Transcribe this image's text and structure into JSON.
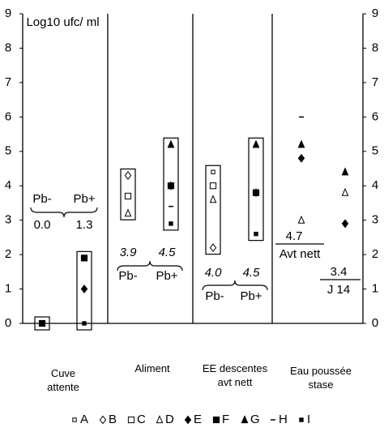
{
  "chart_data": {
    "type": "scatter",
    "y_label": "Log10 ufc/ ml",
    "categories": [
      "Cuve attente",
      "Aliment",
      "EE descentes avt nett",
      "Eau poussée stase"
    ],
    "ylim": [
      0,
      9
    ],
    "yticks": [
      0,
      1,
      2,
      3,
      4,
      5,
      6,
      7,
      8,
      9
    ],
    "series": [
      {
        "name": "A",
        "marker": "small-square-open",
        "color": "#000",
        "values": [
          null,
          null,
          null,
          null,
          4.4,
          null,
          null,
          null
        ]
      },
      {
        "name": "B",
        "marker": "diamond-open",
        "color": "#000",
        "values": [
          null,
          null,
          4.3,
          null,
          2.2,
          null,
          null,
          null
        ]
      },
      {
        "name": "C",
        "marker": "square-open",
        "color": "#000",
        "values": [
          null,
          null,
          3.7,
          null,
          4.0,
          null,
          null,
          null
        ]
      },
      {
        "name": "D",
        "marker": "triangle-open",
        "color": "#000",
        "values": [
          null,
          null,
          3.2,
          null,
          3.6,
          null,
          3.0,
          3.8
        ]
      },
      {
        "name": "E",
        "marker": "diamond",
        "color": "#000",
        "values": [
          null,
          1.0,
          null,
          4.0,
          null,
          3.8,
          4.8,
          2.9
        ]
      },
      {
        "name": "F",
        "marker": "square",
        "color": "#000",
        "values": [
          0,
          1.9,
          null,
          4.0,
          null,
          3.8,
          null,
          null
        ]
      },
      {
        "name": "G",
        "marker": "triangle",
        "color": "#000",
        "values": [
          null,
          null,
          null,
          5.2,
          null,
          5.2,
          5.2,
          4.4
        ]
      },
      {
        "name": "H",
        "marker": "dash",
        "color": "#000",
        "values": [
          null,
          null,
          null,
          3.4,
          null,
          null,
          6.0,
          null
        ]
      },
      {
        "name": "I",
        "marker": "small-square",
        "color": "#000",
        "values": [
          null,
          0,
          null,
          2.9,
          null,
          2.6,
          null,
          null
        ]
      }
    ],
    "annotations": [
      {
        "labels": [
          "Pb-",
          "Pb+"
        ],
        "means": [
          0,
          1.3
        ],
        "mean_labels": [
          "0.0",
          "1.3"
        ]
      },
      {
        "labels": [
          "Pb-",
          "Pb+"
        ],
        "means": [
          3.9,
          4.5
        ]
      },
      {
        "labels": [
          "Pb-",
          "Pb+"
        ],
        "means": [
          4.0,
          4.5
        ],
        "mean_labels": [
          "4.0",
          "4.5"
        ]
      },
      {
        "labels": [
          "Avt nett",
          "J 14"
        ],
        "means": [
          4.7,
          3.4
        ]
      }
    ]
  }
}
